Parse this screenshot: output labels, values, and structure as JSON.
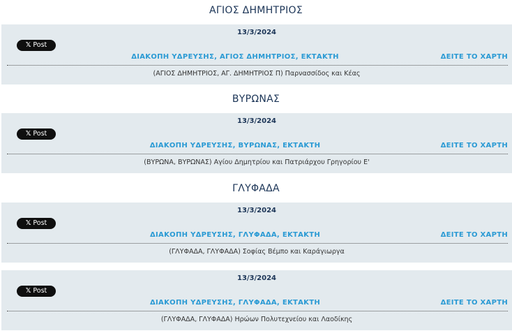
{
  "colors": {
    "heading": "#1c3557",
    "link": "#2a9ad4",
    "card_bg": "#e3eaee"
  },
  "share_button": {
    "icon": "x-logo-icon",
    "label": "Post"
  },
  "map_link_label": "ΔΕΙΤΕ ΤΟ ΧΑΡΤΗ",
  "sections": [
    {
      "heading": "ΑΓΙΟΣ ΔΗΜΗΤΡΙΟΣ",
      "items": [
        {
          "date": "13/3/2024",
          "title": "ΔΙΑΚΟΠΗ ΥΔΡΕΥΣΗΣ, ΑΓΙΟΣ ΔΗΜΗΤΡΙΟΣ, ΕΚΤΑΚΤΗ",
          "address": "(ΑΓΙΟΣ ΔΗΜΗΤΡΙΟΣ, ΑΓ. ΔΗΜΗΤΡΙΟΣ Π) Παρνασσίδος και Κέας"
        }
      ]
    },
    {
      "heading": "ΒΥΡΩΝΑΣ",
      "items": [
        {
          "date": "13/3/2024",
          "title": "ΔΙΑΚΟΠΗ ΥΔΡΕΥΣΗΣ, ΒΥΡΩΝΑΣ, ΕΚΤΑΚΤΗ",
          "address": "(ΒΥΡΩΝΑ, ΒΥΡΩΝΑΣ) Αγίου Δημητρίου και Πατριάρχου Γρηγορίου Ε'"
        }
      ]
    },
    {
      "heading": "ΓΛΥΦΑΔΑ",
      "items": [
        {
          "date": "13/3/2024",
          "title": "ΔΙΑΚΟΠΗ ΥΔΡΕΥΣΗΣ, ΓΛΥΦΑΔΑ, ΕΚΤΑΚΤΗ",
          "address": "(ΓΛΥΦΑΔΑ, ΓΛΥΦΑΔΑ) Σοφίας Βέμπο και Καράγιωργα"
        },
        {
          "date": "13/3/2024",
          "title": "ΔΙΑΚΟΠΗ ΥΔΡΕΥΣΗΣ, ΓΛΥΦΑΔΑ, ΕΚΤΑΚΤΗ",
          "address": "(ΓΛΥΦΑΔΑ, ΓΛΥΦΑΔΑ) Ηρώων Πολυτεχνείου και Λαοδίκης"
        }
      ]
    }
  ]
}
